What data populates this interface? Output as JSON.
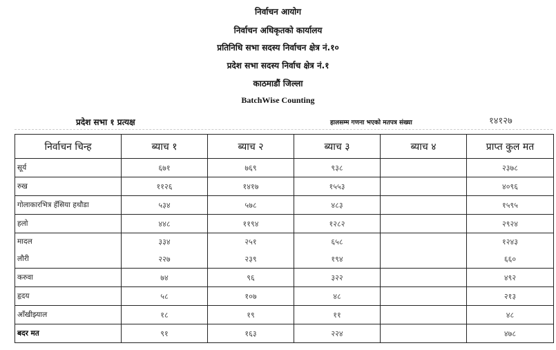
{
  "header": {
    "lines": [
      "निर्वाचन आयोग",
      "निर्वाचन अधिकृतको कार्यालय",
      "प्रतिनिधि सभा सदस्य निर्वाचन क्षेत्र नं.१०",
      "प्रदेश सभा सदस्य निर्वाच क्षेत्र नं.१",
      "काठमाडौं जिल्ला"
    ],
    "batch_title": "BatchWise Counting"
  },
  "subheader": {
    "left": "प्रदेश सभा १ प्रत्यक्ष",
    "label": "हालसम्म गणना भएको मतपत्र संख्या",
    "count": "१४१२७"
  },
  "table": {
    "columns": [
      "निर्वाचन चिन्ह",
      "ब्याच १",
      "ब्याच २",
      "ब्याच ३",
      "ब्याच ४",
      "प्राप्त कुल मत"
    ],
    "rows": [
      {
        "name": "सूर्य",
        "b1": "६७१",
        "b2": "७६९",
        "b3": "९३८",
        "b4": "",
        "total": "२३७८"
      },
      {
        "name": "रुख",
        "b1": "११२६",
        "b2": "१४१७",
        "b3": "१५५३",
        "b4": "",
        "total": "४०९६"
      },
      {
        "name": "गोलाकारभित्र हँसिया हथौडा",
        "b1": "५३४",
        "b2": "५७८",
        "b3": "४८३",
        "b4": "",
        "total": "१५९५"
      },
      {
        "name": "हलो",
        "b1": "४४८",
        "b2": "११९४",
        "b3": "१२८२",
        "b4": "",
        "total": "२९२४"
      }
    ],
    "merged_row": [
      {
        "name": "मादल",
        "b1": "३३४",
        "b2": "२५१",
        "b3": "६५८",
        "b4": "",
        "total": "१२४३"
      },
      {
        "name": "लौरी",
        "b1": "२२७",
        "b2": "२३९",
        "b3": "१९४",
        "b4": "",
        "total": "६६०"
      }
    ],
    "rows2": [
      {
        "name": "करुवा",
        "b1": "७४",
        "b2": "९६",
        "b3": "३२२",
        "b4": "",
        "total": "४९२"
      },
      {
        "name": "हृदय",
        "b1": "५८",
        "b2": "१०७",
        "b3": "४८",
        "b4": "",
        "total": "२१३"
      },
      {
        "name": "आँखीझ्याल",
        "b1": "१८",
        "b2": "१९",
        "b3": "११",
        "b4": "",
        "total": "४८"
      },
      {
        "name": "बदर मत",
        "b1": "९१",
        "b2": "१६३",
        "b3": "२२४",
        "b4": "",
        "total": "४७८"
      }
    ]
  }
}
